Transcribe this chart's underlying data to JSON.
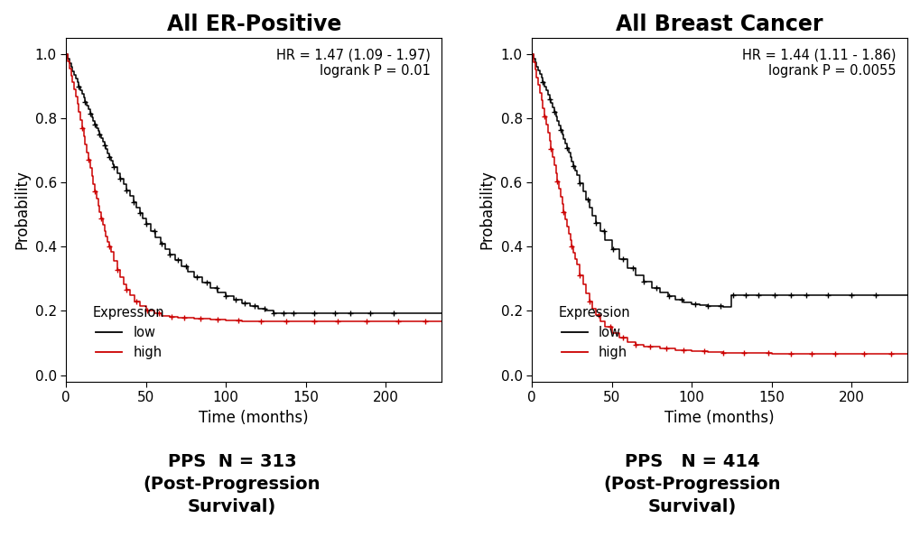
{
  "left_title": "All ER-Positive",
  "right_title": "All Breast Cancer",
  "left_annotation": "HR = 1.47 (1.09 - 1.97)\nlogrank P = 0.01",
  "right_annotation": "HR = 1.44 (1.11 - 1.86)\nlogrank P = 0.0055",
  "left_caption": "PPS  N = 313\n(Post-Progression\nSurvival)",
  "right_caption": "PPS   N = 414\n(Post-Progression\nSurvival)",
  "xlabel": "Time (months)",
  "ylabel": "Probability",
  "xlim": [
    0,
    235
  ],
  "ylim": [
    -0.02,
    1.05
  ],
  "xticks": [
    0,
    50,
    100,
    150,
    200
  ],
  "yticks": [
    0.0,
    0.2,
    0.4,
    0.6,
    0.8,
    1.0
  ],
  "background_color": "#ffffff",
  "low_color": "#000000",
  "high_color": "#cc0000",
  "title_fontsize": 17,
  "axis_fontsize": 12,
  "tick_fontsize": 11,
  "annotation_fontsize": 10.5,
  "legend_fontsize": 10.5,
  "caption_fontsize": 14,
  "left_low_t": [
    0,
    1,
    2,
    3,
    4,
    5,
    6,
    7,
    8,
    9,
    10,
    11,
    12,
    13,
    14,
    15,
    16,
    17,
    18,
    19,
    20,
    21,
    22,
    23,
    24,
    25,
    26,
    27,
    28,
    29,
    30,
    32,
    34,
    36,
    38,
    40,
    42,
    44,
    46,
    48,
    50,
    53,
    56,
    59,
    62,
    65,
    68,
    72,
    76,
    80,
    85,
    90,
    95,
    100,
    105,
    110,
    115,
    120,
    125,
    130,
    135,
    140,
    145,
    150,
    155,
    160,
    165,
    170,
    175,
    180,
    185,
    190,
    210,
    235
  ],
  "left_low_p": [
    1.0,
    0.985,
    0.972,
    0.96,
    0.948,
    0.936,
    0.924,
    0.912,
    0.9,
    0.888,
    0.876,
    0.864,
    0.852,
    0.84,
    0.828,
    0.816,
    0.804,
    0.792,
    0.78,
    0.77,
    0.76,
    0.75,
    0.74,
    0.728,
    0.716,
    0.704,
    0.692,
    0.68,
    0.668,
    0.658,
    0.648,
    0.63,
    0.612,
    0.594,
    0.576,
    0.558,
    0.54,
    0.522,
    0.504,
    0.488,
    0.472,
    0.45,
    0.43,
    0.41,
    0.392,
    0.375,
    0.358,
    0.34,
    0.322,
    0.306,
    0.288,
    0.272,
    0.258,
    0.245,
    0.235,
    0.225,
    0.216,
    0.208,
    0.2,
    0.192,
    0.192,
    0.192,
    0.192,
    0.192,
    0.192,
    0.192,
    0.192,
    0.192,
    0.192,
    0.192,
    0.192,
    0.192,
    0.192,
    0.192
  ],
  "left_high_t": [
    0,
    1,
    2,
    3,
    4,
    5,
    6,
    7,
    8,
    9,
    10,
    11,
    12,
    13,
    14,
    15,
    16,
    17,
    18,
    19,
    20,
    21,
    22,
    23,
    24,
    25,
    26,
    27,
    28,
    30,
    32,
    34,
    36,
    38,
    40,
    43,
    46,
    50,
    55,
    60,
    65,
    70,
    80,
    90,
    100,
    110,
    120,
    135,
    150,
    165,
    180,
    200,
    220,
    235
  ],
  "left_high_p": [
    1.0,
    0.978,
    0.956,
    0.934,
    0.912,
    0.89,
    0.868,
    0.846,
    0.82,
    0.795,
    0.77,
    0.745,
    0.72,
    0.695,
    0.67,
    0.645,
    0.62,
    0.595,
    0.572,
    0.55,
    0.528,
    0.507,
    0.487,
    0.468,
    0.45,
    0.432,
    0.416,
    0.4,
    0.385,
    0.355,
    0.328,
    0.305,
    0.284,
    0.265,
    0.248,
    0.23,
    0.215,
    0.2,
    0.192,
    0.185,
    0.182,
    0.178,
    0.175,
    0.172,
    0.17,
    0.168,
    0.168,
    0.168,
    0.168,
    0.168,
    0.168,
    0.168,
    0.168,
    0.168
  ],
  "left_low_cens_t": [
    8,
    12,
    15,
    18,
    21,
    24,
    27,
    30,
    34,
    38,
    42,
    46,
    50,
    55,
    60,
    65,
    70,
    75,
    82,
    88,
    94,
    100,
    106,
    112,
    118,
    124,
    130,
    136,
    142,
    155,
    168,
    178,
    190,
    205
  ],
  "left_high_cens_t": [
    10,
    14,
    18,
    22,
    27,
    32,
    38,
    44,
    51,
    58,
    66,
    74,
    84,
    95,
    108,
    122,
    138,
    155,
    170,
    188,
    208,
    225
  ],
  "right_low_t": [
    0,
    1,
    2,
    3,
    4,
    5,
    6,
    7,
    8,
    9,
    10,
    11,
    12,
    13,
    14,
    15,
    16,
    17,
    18,
    19,
    20,
    21,
    22,
    23,
    24,
    25,
    26,
    27,
    28,
    30,
    32,
    34,
    36,
    38,
    40,
    43,
    46,
    50,
    55,
    60,
    65,
    70,
    75,
    80,
    85,
    90,
    95,
    100,
    105,
    110,
    115,
    120,
    125,
    130,
    135,
    140,
    150,
    160,
    170,
    180,
    190,
    210,
    235
  ],
  "right_low_p": [
    1.0,
    0.987,
    0.974,
    0.962,
    0.95,
    0.938,
    0.926,
    0.914,
    0.9,
    0.887,
    0.874,
    0.861,
    0.848,
    0.834,
    0.82,
    0.806,
    0.792,
    0.778,
    0.764,
    0.75,
    0.736,
    0.722,
    0.708,
    0.694,
    0.68,
    0.666,
    0.652,
    0.638,
    0.624,
    0.598,
    0.572,
    0.547,
    0.522,
    0.498,
    0.475,
    0.448,
    0.422,
    0.392,
    0.362,
    0.334,
    0.31,
    0.29,
    0.272,
    0.258,
    0.246,
    0.236,
    0.228,
    0.222,
    0.218,
    0.216,
    0.214,
    0.212,
    0.25,
    0.25,
    0.25,
    0.25,
    0.25,
    0.25,
    0.25,
    0.25,
    0.25,
    0.25,
    0.25
  ],
  "right_high_t": [
    0,
    1,
    2,
    3,
    4,
    5,
    6,
    7,
    8,
    9,
    10,
    11,
    12,
    13,
    14,
    15,
    16,
    17,
    18,
    19,
    20,
    21,
    22,
    23,
    24,
    25,
    26,
    27,
    28,
    30,
    32,
    34,
    36,
    38,
    40,
    43,
    46,
    50,
    55,
    60,
    65,
    70,
    80,
    90,
    100,
    110,
    120,
    135,
    150,
    165,
    180,
    200,
    220,
    235
  ],
  "right_high_p": [
    1.0,
    0.976,
    0.952,
    0.928,
    0.904,
    0.88,
    0.856,
    0.832,
    0.806,
    0.78,
    0.755,
    0.73,
    0.705,
    0.68,
    0.655,
    0.63,
    0.605,
    0.58,
    0.556,
    0.532,
    0.508,
    0.485,
    0.463,
    0.441,
    0.42,
    0.4,
    0.381,
    0.362,
    0.344,
    0.312,
    0.282,
    0.255,
    0.23,
    0.208,
    0.188,
    0.168,
    0.15,
    0.132,
    0.116,
    0.104,
    0.095,
    0.088,
    0.082,
    0.078,
    0.075,
    0.072,
    0.07,
    0.068,
    0.067,
    0.067,
    0.067,
    0.067,
    0.067,
    0.067
  ],
  "right_low_cens_t": [
    7,
    11,
    14,
    18,
    22,
    26,
    30,
    35,
    40,
    45,
    51,
    57,
    63,
    70,
    78,
    86,
    94,
    102,
    110,
    118,
    126,
    134,
    142,
    152,
    162,
    172,
    185,
    200,
    215
  ],
  "right_high_cens_t": [
    8,
    12,
    16,
    20,
    25,
    30,
    36,
    42,
    49,
    57,
    65,
    74,
    84,
    95,
    108,
    120,
    133,
    148,
    162,
    175,
    190,
    208,
    225
  ]
}
